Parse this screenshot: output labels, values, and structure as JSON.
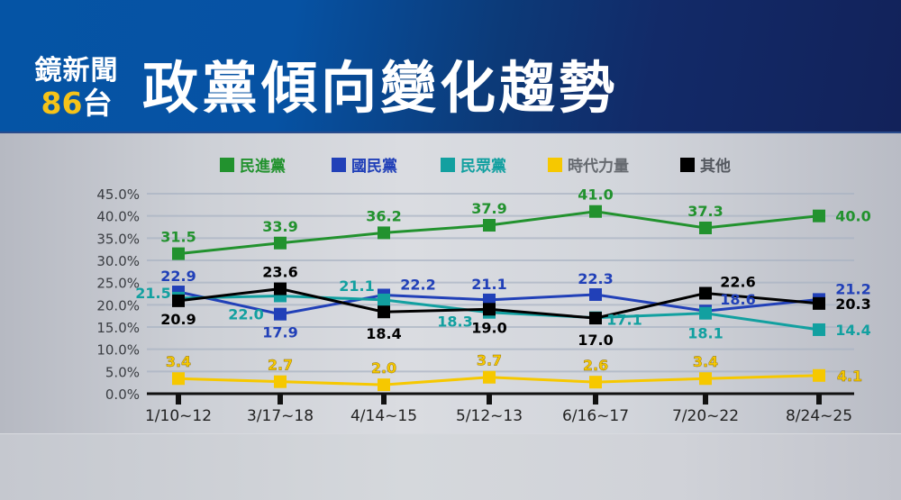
{
  "header": {
    "logo_top": "鏡新聞",
    "logo_channel_number": "86",
    "logo_channel_char": "台",
    "title": "政黨傾向變化趨勢"
  },
  "colors": {
    "dpp": "#22922e",
    "kmt": "#2140b8",
    "tpp": "#12a0a0",
    "npp": "#f6c800",
    "other": "#000000",
    "grid": "#a9b3c3",
    "axis": "#111111"
  },
  "legend": [
    {
      "label": "民進黨",
      "color": "#22922e"
    },
    {
      "label": "國民黨",
      "color": "#2140b8"
    },
    {
      "label": "民眾黨",
      "color": "#12a0a0"
    },
    {
      "label": "時代力量",
      "color": "#f6c800"
    },
    {
      "label": "其他",
      "color": "#000000"
    }
  ],
  "chart_data": {
    "type": "line",
    "title": "政黨傾向變化趨勢",
    "xlabel": "",
    "ylabel": "",
    "categories": [
      "1/10~12",
      "3/17~18",
      "4/14~15",
      "5/12~13",
      "6/16~17",
      "7/20~22",
      "8/24~25"
    ],
    "y_ticks": [
      "0.0%",
      "5.0%",
      "10.0%",
      "15.0%",
      "20.0%",
      "25.0%",
      "30.0%",
      "35.0%",
      "40.0%",
      "45.0%"
    ],
    "ylim": [
      0,
      45
    ],
    "grid": true,
    "legend_position": "top",
    "series": [
      {
        "name": "民進黨",
        "color": "#22922e",
        "values": [
          31.5,
          33.9,
          36.2,
          37.9,
          41.0,
          37.3,
          40.0
        ]
      },
      {
        "name": "國民黨",
        "color": "#2140b8",
        "values": [
          22.9,
          17.9,
          22.2,
          21.1,
          22.3,
          18.6,
          21.2
        ]
      },
      {
        "name": "民眾黨",
        "color": "#12a0a0",
        "values": [
          21.5,
          22.0,
          21.1,
          18.3,
          17.1,
          18.1,
          14.4
        ]
      },
      {
        "name": "時代力量",
        "color": "#f6c800",
        "values": [
          3.4,
          2.7,
          2.0,
          3.7,
          2.6,
          3.4,
          4.1
        ]
      },
      {
        "name": "其他",
        "color": "#000000",
        "values": [
          20.9,
          23.6,
          18.4,
          19.0,
          17.0,
          22.6,
          20.3
        ]
      }
    ]
  }
}
